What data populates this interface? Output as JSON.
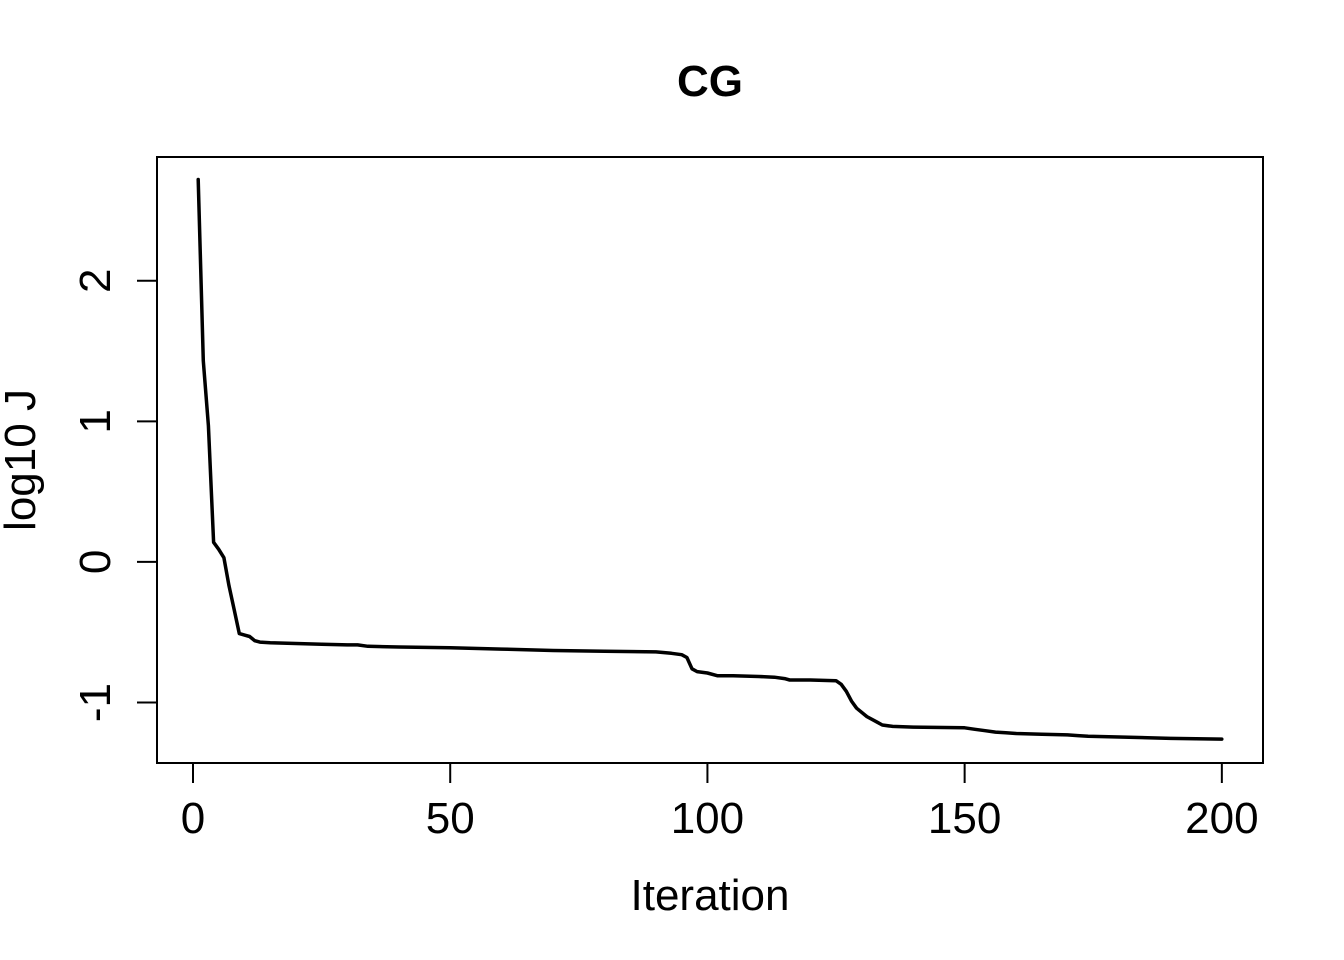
{
  "chart_data": {
    "type": "line",
    "title": "CG",
    "xlabel": "Iteration",
    "ylabel": "log10 J",
    "xlim": [
      -7,
      208
    ],
    "ylim": [
      -1.43,
      2.88
    ],
    "x_ticks": [
      0,
      50,
      100,
      150,
      200
    ],
    "x_tick_labels": [
      "0",
      "50",
      "100",
      "150",
      "200"
    ],
    "y_ticks": [
      -1,
      0,
      1,
      2
    ],
    "y_tick_labels": [
      "-1",
      "0",
      "1",
      "2"
    ],
    "grid": false,
    "line_color": "#000000",
    "series": [
      {
        "x": [
          1,
          2,
          3,
          4,
          5,
          6,
          7,
          8,
          9,
          10,
          11,
          12,
          13,
          15,
          20,
          25,
          30,
          32,
          34,
          40,
          50,
          60,
          70,
          80,
          90,
          93,
          95,
          96,
          97,
          98,
          100,
          102,
          105,
          110,
          113,
          115,
          116,
          120,
          125,
          126,
          127,
          128,
          129,
          131,
          133,
          134,
          136,
          140,
          150,
          152,
          154,
          156,
          158,
          160,
          165,
          170,
          172,
          174,
          180,
          190,
          200
        ],
        "y": [
          2.72,
          1.43,
          0.97,
          0.14,
          0.09,
          0.03,
          -0.17,
          -0.34,
          -0.51,
          -0.52,
          -0.53,
          -0.56,
          -0.57,
          -0.575,
          -0.58,
          -0.585,
          -0.59,
          -0.59,
          -0.6,
          -0.605,
          -0.61,
          -0.62,
          -0.63,
          -0.635,
          -0.64,
          -0.65,
          -0.66,
          -0.68,
          -0.76,
          -0.78,
          -0.79,
          -0.81,
          -0.81,
          -0.815,
          -0.82,
          -0.83,
          -0.84,
          -0.84,
          -0.845,
          -0.87,
          -0.92,
          -0.99,
          -1.04,
          -1.1,
          -1.14,
          -1.16,
          -1.17,
          -1.175,
          -1.18,
          -1.19,
          -1.2,
          -1.21,
          -1.215,
          -1.22,
          -1.225,
          -1.23,
          -1.235,
          -1.24,
          -1.245,
          -1.255,
          -1.26
        ]
      }
    ]
  }
}
